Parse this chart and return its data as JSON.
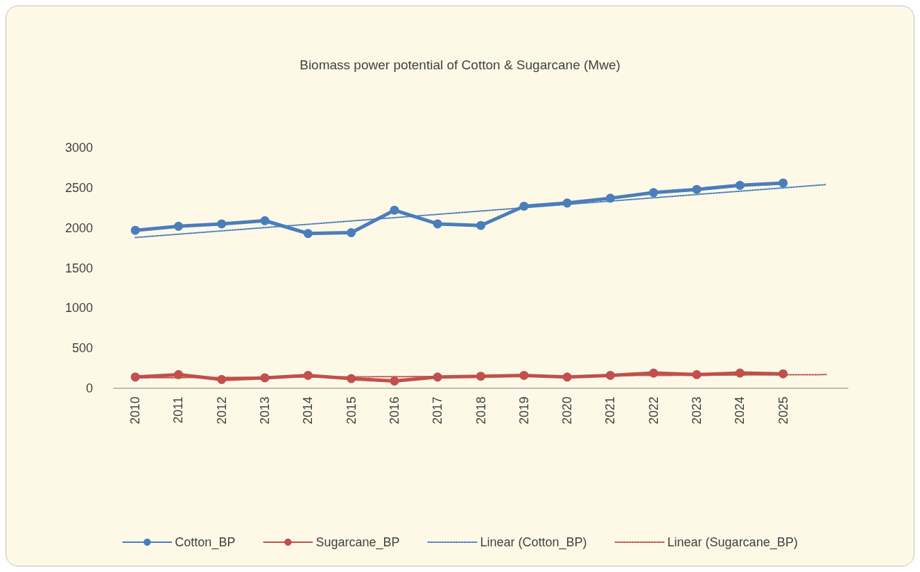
{
  "chart_data": {
    "type": "line",
    "title": "Biomass power potential of Cotton & Sugarcane (Mwe)",
    "categories": [
      "2010",
      "2011",
      "2012",
      "2013",
      "2014",
      "2015",
      "2016",
      "2017",
      "2018",
      "2019",
      "2020",
      "2021",
      "2022",
      "2023",
      "2024",
      "2025",
      null
    ],
    "series": [
      {
        "name": "Cotton_BP",
        "color": "#4a7ebb",
        "marker": "circle",
        "line_style": "solid",
        "values": [
          1970,
          2020,
          2050,
          2090,
          1930,
          1940,
          2220,
          2050,
          2030,
          2270,
          2310,
          2370,
          2440,
          2480,
          2530,
          2560,
          null
        ]
      },
      {
        "name": "Sugarcane_BP",
        "color": "#c0504d",
        "marker": "circle",
        "line_style": "solid",
        "values": [
          140,
          170,
          110,
          130,
          160,
          120,
          90,
          140,
          150,
          160,
          140,
          160,
          190,
          170,
          190,
          180,
          null
        ]
      },
      {
        "name": "Linear (Cotton_BP)",
        "color": "#4a7ebb",
        "marker": "none",
        "line_style": "dotted",
        "values": [
          1880,
          null,
          null,
          null,
          null,
          null,
          null,
          null,
          null,
          null,
          null,
          null,
          null,
          null,
          null,
          null,
          2540
        ]
      },
      {
        "name": "Linear (Sugarcane_BP)",
        "color": "#c0504d",
        "marker": "none",
        "line_style": "dotted",
        "values": [
          130,
          null,
          null,
          null,
          null,
          null,
          null,
          null,
          null,
          null,
          null,
          null,
          null,
          null,
          null,
          null,
          170
        ]
      }
    ],
    "ylim": [
      0,
      3000
    ],
    "yticks": [
      0,
      500,
      {
        "value": 1000,
        "label": "1000"
      },
      {
        "value": 1500,
        "label": "1500"
      },
      {
        "value": 2000,
        "label": "2000"
      },
      {
        "value": 2500,
        "label": "2500"
      },
      {
        "value": 3000,
        "label": "3000"
      }
    ],
    "grid": false,
    "legend": "bottom"
  }
}
